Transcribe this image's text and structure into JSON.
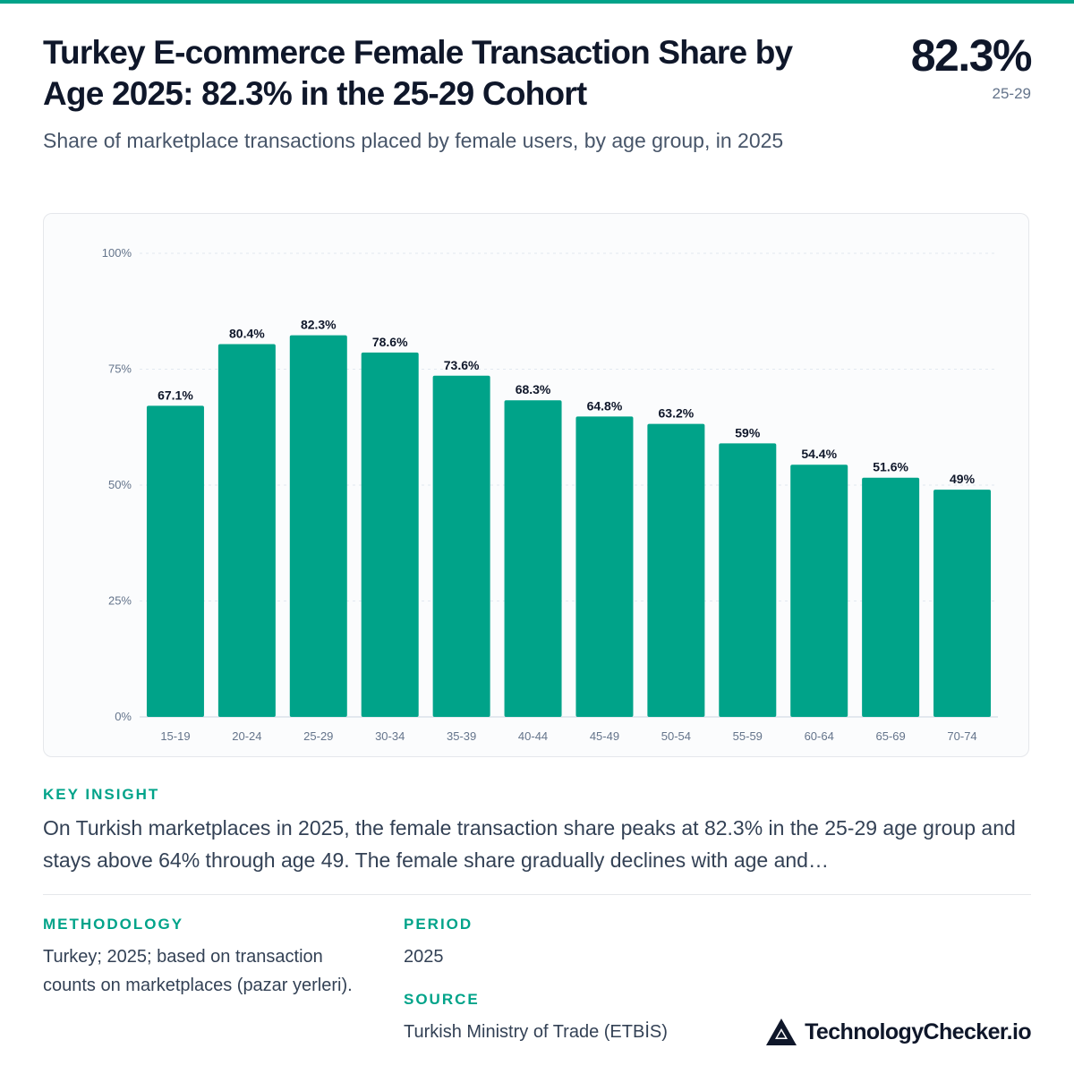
{
  "header": {
    "title": "Turkey E-commerce Female Transaction Share by Age 2025: 82.3% in the 25-29 Cohort",
    "subtitle": "Share of marketplace transactions placed by female users, by age group, in 2025",
    "stat_value": "82.3%",
    "stat_label": "25-29"
  },
  "chart_data": {
    "type": "bar",
    "categories": [
      "15-19",
      "20-24",
      "25-29",
      "30-34",
      "35-39",
      "40-44",
      "45-49",
      "50-54",
      "55-59",
      "60-64",
      "65-69",
      "70-74"
    ],
    "values": [
      67.1,
      80.4,
      82.3,
      78.6,
      73.6,
      68.3,
      64.8,
      63.2,
      59,
      54.4,
      51.6,
      49
    ],
    "value_labels": [
      "67.1%",
      "80.4%",
      "82.3%",
      "78.6%",
      "73.6%",
      "68.3%",
      "64.8%",
      "63.2%",
      "59%",
      "54.4%",
      "51.6%",
      "49%"
    ],
    "y_ticks": [
      0,
      25,
      50,
      75,
      100
    ],
    "y_tick_labels": [
      "0%",
      "25%",
      "50%",
      "75%",
      "100%"
    ],
    "ylim": [
      0,
      100
    ],
    "grid": true,
    "bar_color": "#00a389"
  },
  "insight": {
    "label": "KEY INSIGHT",
    "text": "On Turkish marketplaces in 2025, the female transaction share peaks at 82.3% in the 25-29 age group and stays above 64% through age 49. The female share gradually declines with age and…"
  },
  "methodology": {
    "label": "METHODOLOGY",
    "text": "Turkey; 2025; based on transaction counts on marketplaces (pazar yerleri)."
  },
  "period": {
    "label": "PERIOD",
    "text": "2025"
  },
  "source": {
    "label": "SOURCE",
    "text": "Turkish Ministry of Trade (ETBİS)"
  },
  "brand": {
    "name": "TechnologyChecker.io",
    "icon": "mountain-logo-icon"
  },
  "colors": {
    "accent": "#00a389",
    "text": "#0f172a",
    "muted": "#64748b"
  }
}
